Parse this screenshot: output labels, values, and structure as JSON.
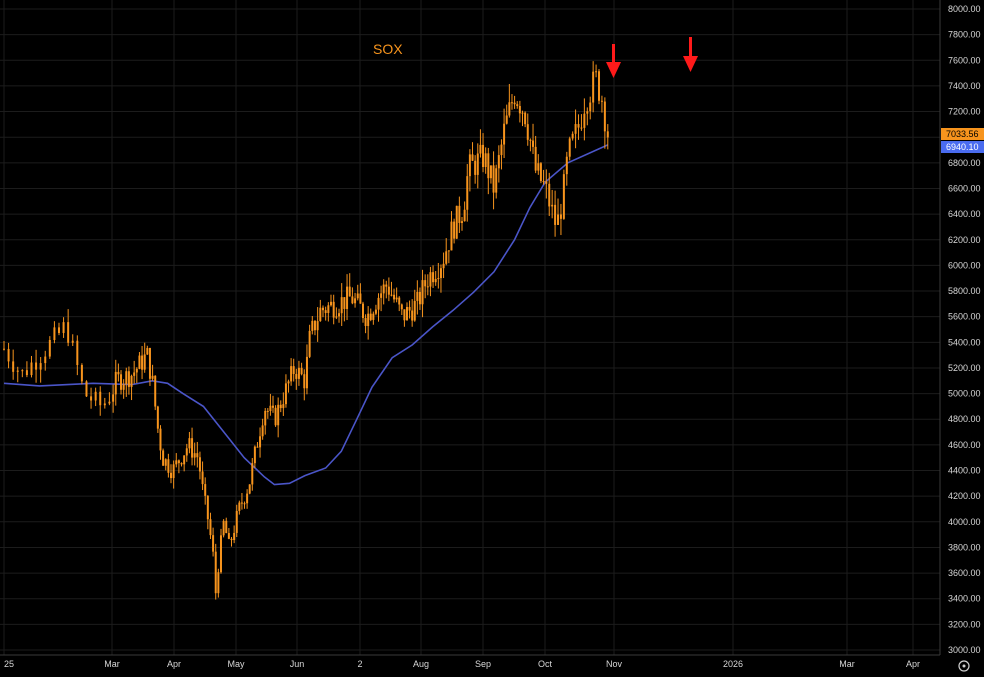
{
  "chart_data": {
    "type": "candlestick",
    "title": "SOX",
    "yticks": [
      "8000.00",
      "7800.00",
      "7600.00",
      "7400.00",
      "7200.00",
      "7000.00",
      "6800.00",
      "6600.00",
      "6400.00",
      "6200.00",
      "6000.00",
      "5800.00",
      "5600.00",
      "5400.00",
      "5200.00",
      "5000.00",
      "4800.00",
      "4600.00",
      "4400.00",
      "4200.00",
      "4000.00",
      "3800.00",
      "3600.00",
      "3400.00",
      "3200.00",
      "3000.00"
    ],
    "xticks": [
      "25",
      "Mar",
      "Apr",
      "May",
      "Jun",
      "2",
      "Aug",
      "Sep",
      "Oct",
      "Nov",
      "2026",
      "Mar",
      "Apr"
    ],
    "ylim": [
      3000,
      8000
    ],
    "last_price": "7033.56",
    "ma_value": "6940.10",
    "colors": {
      "candle": "#f7941d",
      "ma": "#4a55c8",
      "arrow": "#ff1a1a",
      "grid": "#1c1c1c"
    },
    "close_series": [
      [
        5350,
        0.0
      ],
      [
        5150,
        0.1
      ],
      [
        5300,
        0.2
      ],
      [
        5450,
        0.3
      ],
      [
        5530,
        0.35
      ],
      [
        5000,
        0.45
      ],
      [
        4900,
        0.55
      ],
      [
        5100,
        0.65
      ],
      [
        5150,
        0.8
      ],
      [
        5300,
        0.95
      ],
      [
        5100,
        1.0
      ],
      [
        4750,
        1.05
      ],
      [
        4500,
        1.1
      ],
      [
        4400,
        1.2
      ],
      [
        4600,
        1.35
      ],
      [
        4500,
        1.45
      ],
      [
        4200,
        1.5
      ],
      [
        4000,
        1.55
      ],
      [
        3700,
        1.6
      ],
      [
        3450,
        1.62
      ],
      [
        3700,
        1.65
      ],
      [
        4000,
        1.7
      ],
      [
        3800,
        1.75
      ],
      [
        4100,
        1.85
      ],
      [
        4300,
        1.95
      ],
      [
        4500,
        2.0
      ],
      [
        4900,
        2.1
      ],
      [
        4800,
        2.2
      ],
      [
        5000,
        2.3
      ],
      [
        5200,
        2.4
      ],
      [
        5100,
        2.5
      ],
      [
        5450,
        2.55
      ],
      [
        5650,
        2.65
      ],
      [
        5700,
        2.8
      ],
      [
        5750,
        2.95
      ],
      [
        5600,
        3.1
      ],
      [
        5750,
        3.2
      ],
      [
        5850,
        3.3
      ],
      [
        5600,
        3.45
      ],
      [
        5700,
        3.6
      ],
      [
        5900,
        3.7
      ],
      [
        6050,
        3.85
      ],
      [
        6300,
        3.95
      ],
      [
        6450,
        4.05
      ],
      [
        6750,
        4.1
      ],
      [
        6850,
        4.25
      ],
      [
        6600,
        4.35
      ],
      [
        7050,
        4.45
      ],
      [
        7350,
        4.55
      ],
      [
        7200,
        4.65
      ],
      [
        7000,
        4.7
      ],
      [
        6750,
        4.75
      ],
      [
        6600,
        4.85
      ],
      [
        6300,
        4.95
      ],
      [
        6500,
        5.0
      ],
      [
        6850,
        5.05
      ],
      [
        7100,
        5.15
      ],
      [
        7300,
        5.2
      ],
      [
        7450,
        5.3
      ],
      [
        7300,
        5.35
      ],
      [
        7033,
        5.4
      ]
    ],
    "ma_series": [
      [
        5080,
        0.0
      ],
      [
        5060,
        0.2
      ],
      [
        5080,
        0.5
      ],
      [
        5070,
        0.8
      ],
      [
        5100,
        1.0
      ],
      [
        5080,
        1.15
      ],
      [
        5000,
        1.3
      ],
      [
        4900,
        1.5
      ],
      [
        4700,
        1.7
      ],
      [
        4500,
        1.9
      ],
      [
        4350,
        2.1
      ],
      [
        4290,
        2.2
      ],
      [
        4300,
        2.35
      ],
      [
        4360,
        2.5
      ],
      [
        4420,
        2.7
      ],
      [
        4550,
        2.85
      ],
      [
        4800,
        3.0
      ],
      [
        5050,
        3.15
      ],
      [
        5280,
        3.35
      ],
      [
        5380,
        3.55
      ],
      [
        5520,
        3.75
      ],
      [
        5650,
        3.95
      ],
      [
        5790,
        4.15
      ],
      [
        5950,
        4.35
      ],
      [
        6200,
        4.55
      ],
      [
        6450,
        4.7
      ],
      [
        6650,
        4.85
      ],
      [
        6800,
        5.05
      ],
      [
        6940,
        5.4
      ]
    ]
  }
}
